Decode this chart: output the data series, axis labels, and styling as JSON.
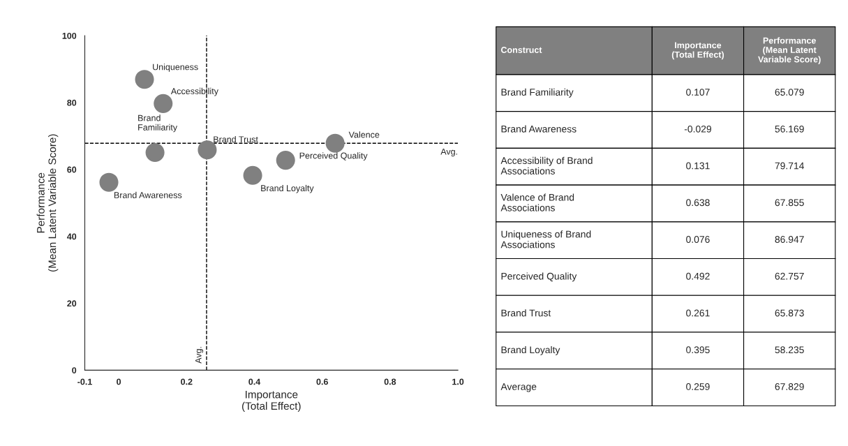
{
  "chart_data": [
    {
      "type": "scatter",
      "xlabel": "Importance\n(Total Effect)",
      "ylabel": "Performance\n(Mean Latent Variable Score)",
      "x": [
        0.107,
        -0.029,
        0.131,
        0.638,
        0.076,
        0.492,
        0.261,
        0.395
      ],
      "series": [
        {
          "color": "#808080",
          "values": [
            65.079,
            56.169,
            79.714,
            67.855,
            86.947,
            62.757,
            65.873,
            58.235
          ]
        }
      ],
      "marker": "circle",
      "xlim": [
        -0.1,
        1.0
      ],
      "xticks": [
        -0.1,
        0,
        0.2,
        0.4,
        0.6,
        0.8,
        {
          "value": 1.0,
          "label": "1.0"
        }
      ],
      "ylim": [
        0,
        100
      ],
      "yticks": [
        0,
        20,
        40,
        60,
        80,
        100
      ],
      "ref_lines": [
        {
          "axis": "x",
          "value": 0.259,
          "label": "Avg.",
          "color": "#000000",
          "line_style": "dashed"
        },
        {
          "axis": "y",
          "value": 67.829,
          "label": "Avg.",
          "color": "#000000",
          "line_style": "dashed"
        }
      ],
      "annotations": [
        {
          "text": "Brand\nFamiliarity",
          "x": 0.107,
          "y": 65.079
        },
        {
          "text": "Brand Awareness",
          "x": -0.029,
          "y": 56.169
        },
        {
          "text": "Accessibility",
          "x": 0.131,
          "y": 79.714
        },
        {
          "text": "Valence",
          "x": 0.638,
          "y": 67.855
        },
        {
          "text": "Uniqueness",
          "x": 0.076,
          "y": 86.947
        },
        {
          "text": "Perceived Quality",
          "x": 0.492,
          "y": 62.757
        },
        {
          "text": "Brand Trust",
          "x": 0.261,
          "y": 65.873
        },
        {
          "text": "Brand Loyalty",
          "x": 0.395,
          "y": 58.235
        }
      ],
      "grid": false,
      "legend": false
    },
    {
      "type": "other",
      "xlabel": "Construct",
      "categories": [
        "Brand Familiarity",
        "Brand Awareness",
        "Accessibility of Brand\nAssociations",
        "Valence of Brand\nAssociations",
        "Uniqueness of Brand\nAssociations",
        "Perceived Quality",
        "Brand Trust",
        "Brand Loyalty",
        "Average"
      ],
      "series": [
        {
          "name": "Importance\n(Total Effect)",
          "values": [
            0.107,
            -0.029,
            0.131,
            0.638,
            0.076,
            0.492,
            0.261,
            0.395,
            0.259
          ]
        },
        {
          "name": "Performance\n(Mean Latent\nVariable Score)",
          "values": [
            65.079,
            56.169,
            79.714,
            67.855,
            86.947,
            62.757,
            65.873,
            58.235,
            67.829
          ]
        }
      ],
      "data_labels": true
    }
  ]
}
